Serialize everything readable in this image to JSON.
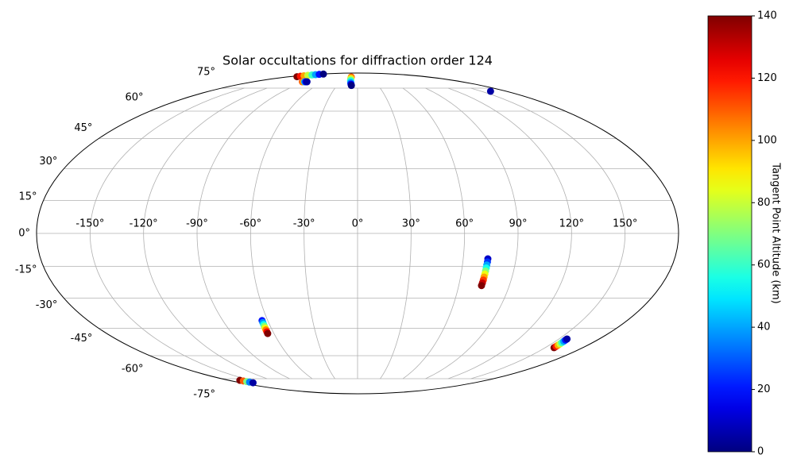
{
  "chart_data": {
    "type": "scatter",
    "projection": "mollweide",
    "title": "Solar occultations for diffraction order 124",
    "colorbar_label": "Tangent Point Altitude (km)",
    "colormap": "jet",
    "grid": true,
    "lon": [
      -160,
      -161.5,
      -163,
      -164.5,
      -166,
      -167.5,
      -169,
      -170,
      -95,
      -93,
      -91,
      -89,
      -87,
      -16,
      -15,
      -14,
      -13,
      -12,
      -11,
      -10,
      -9,
      161,
      74,
      74,
      73.9,
      73.9,
      73.8,
      73.8,
      73.7,
      73.7,
      73.6,
      73.5,
      -63.8,
      -63.9,
      -64,
      -64.1,
      -64.2,
      -64.3,
      -64.4,
      -64.5,
      157,
      156.9,
      156.7,
      156.6,
      156.4,
      156.3,
      156.1,
      156,
      -164.5,
      -163.5,
      -162.5,
      -161.7,
      -160.7
    ],
    "lat": [
      84.8,
      85.3,
      85.8,
      86.3,
      86.8,
      87.2,
      87.6,
      88,
      80,
      80,
      80,
      80,
      80,
      84.5,
      83.4,
      82.3,
      81.2,
      80.1,
      79,
      78,
      77,
      72.7,
      -11.6,
      -13,
      -14.4,
      -15.8,
      -17.2,
      -18.6,
      -20,
      -21.4,
      -22.8,
      -24,
      -41,
      -42,
      -43,
      -43.9,
      -44.9,
      -45.8,
      -46.8,
      -47.7,
      -55.4,
      -54.7,
      -54,
      -53.3,
      -52.6,
      -51.9,
      -51.2,
      -50.6,
      -76.2,
      -76.7,
      -77.2,
      -77.6,
      -78.1
    ],
    "altitude": [
      140,
      120,
      100,
      80,
      60,
      40,
      20,
      0,
      110,
      100,
      40,
      15,
      5,
      110,
      95,
      80,
      65,
      50,
      35,
      15,
      0,
      5,
      10,
      25,
      40,
      55,
      70,
      85,
      100,
      115,
      130,
      140,
      20,
      37,
      54,
      71,
      88,
      105,
      122,
      140,
      140,
      120,
      100,
      80,
      60,
      40,
      20,
      5,
      140,
      110,
      70,
      35,
      5
    ],
    "xticks": [
      {
        "value": -150,
        "label": "-150°"
      },
      {
        "value": -120,
        "label": "-120°"
      },
      {
        "value": -90,
        "label": "-90°"
      },
      {
        "value": -60,
        "label": "-60°"
      },
      {
        "value": -30,
        "label": "-30°"
      },
      {
        "value": 0,
        "label": "0°"
      },
      {
        "value": 30,
        "label": "30°"
      },
      {
        "value": 60,
        "label": "60°"
      },
      {
        "value": 90,
        "label": "90°"
      },
      {
        "value": 120,
        "label": "120°"
      },
      {
        "value": 150,
        "label": "150°"
      }
    ],
    "yticks": [
      {
        "value": -75,
        "label": "-75°"
      },
      {
        "value": -60,
        "label": "-60°"
      },
      {
        "value": -45,
        "label": "-45°"
      },
      {
        "value": -30,
        "label": "-30°"
      },
      {
        "value": -15,
        "label": "-15°"
      },
      {
        "value": 0,
        "label": "0°"
      },
      {
        "value": 15,
        "label": "15°"
      },
      {
        "value": 30,
        "label": "30°"
      },
      {
        "value": 45,
        "label": "45°"
      },
      {
        "value": 60,
        "label": "60°"
      },
      {
        "value": 75,
        "label": "75°"
      }
    ],
    "clim": [
      0,
      140
    ],
    "cticks": [
      0,
      20,
      40,
      60,
      80,
      100,
      120,
      140
    ]
  }
}
